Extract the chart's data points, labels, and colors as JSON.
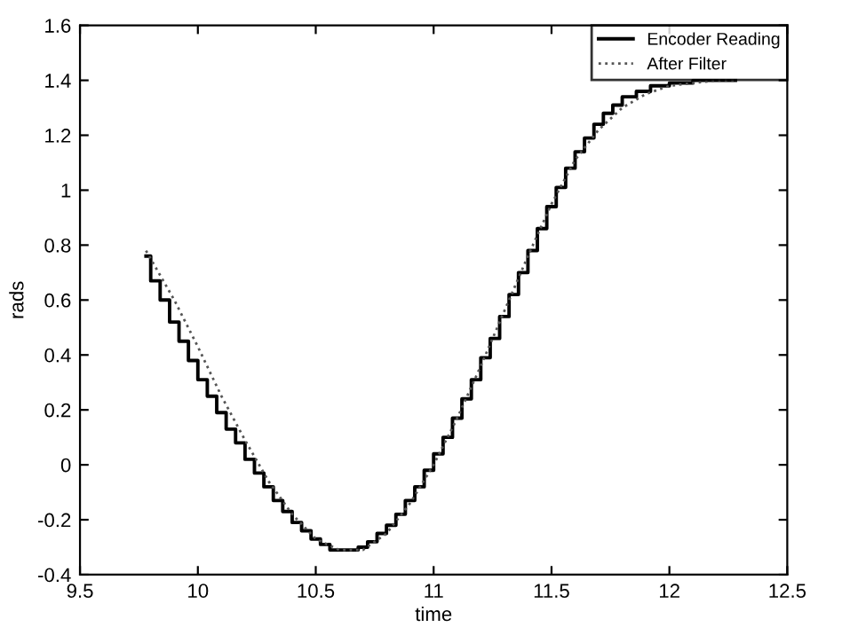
{
  "chart_data": {
    "type": "line",
    "xlabel": "time",
    "ylabel": "rads",
    "xlim": [
      9.5,
      12.5
    ],
    "ylim": [
      -0.4,
      1.6
    ],
    "xticks": [
      9.5,
      10,
      10.5,
      11,
      11.5,
      12,
      12.5
    ],
    "yticks": [
      -0.4,
      -0.2,
      0,
      0.2,
      0.4,
      0.6,
      0.8,
      1,
      1.2,
      1.4,
      1.6
    ],
    "legend": "top right",
    "grid": false,
    "series": [
      {
        "name": "Encoder Reading",
        "type": "step",
        "color": "#000000",
        "line_style": "solid",
        "x": [
          9.78,
          9.8,
          9.84,
          9.88,
          9.92,
          9.96,
          10.0,
          10.04,
          10.08,
          10.12,
          10.16,
          10.2,
          10.24,
          10.28,
          10.32,
          10.36,
          10.4,
          10.44,
          10.48,
          10.52,
          10.56,
          10.68,
          10.72,
          10.76,
          10.8,
          10.84,
          10.88,
          10.92,
          10.96,
          11.0,
          11.04,
          11.08,
          11.12,
          11.16,
          11.2,
          11.24,
          11.28,
          11.32,
          11.36,
          11.4,
          11.44,
          11.48,
          11.52,
          11.56,
          11.6,
          11.64,
          11.68,
          11.72,
          11.76,
          11.8,
          11.86,
          11.92,
          12.0,
          12.1,
          12.28
        ],
        "values": [
          0.76,
          0.67,
          0.6,
          0.52,
          0.45,
          0.38,
          0.31,
          0.25,
          0.19,
          0.13,
          0.08,
          0.02,
          -0.03,
          -0.08,
          -0.13,
          -0.17,
          -0.21,
          -0.24,
          -0.27,
          -0.29,
          -0.31,
          -0.3,
          -0.28,
          -0.25,
          -0.22,
          -0.18,
          -0.13,
          -0.08,
          -0.02,
          0.04,
          0.1,
          0.17,
          0.24,
          0.31,
          0.39,
          0.46,
          0.54,
          0.62,
          0.7,
          0.78,
          0.86,
          0.94,
          1.01,
          1.08,
          1.14,
          1.19,
          1.24,
          1.28,
          1.31,
          1.34,
          1.36,
          1.38,
          1.39,
          1.4,
          1.4
        ]
      },
      {
        "name": "After Filter",
        "color": "#555555",
        "line_style": "dotted",
        "x": [
          9.78,
          9.9,
          10.0,
          10.1,
          10.2,
          10.3,
          10.4,
          10.5,
          10.6,
          10.7,
          10.8,
          10.9,
          11.0,
          11.1,
          11.2,
          11.3,
          11.4,
          11.5,
          11.6,
          11.7,
          11.8,
          11.9,
          12.0,
          12.1,
          12.2,
          12.28
        ],
        "values": [
          0.78,
          0.6,
          0.43,
          0.25,
          0.09,
          -0.06,
          -0.18,
          -0.27,
          -0.31,
          -0.31,
          -0.25,
          -0.14,
          0.0,
          0.17,
          0.36,
          0.56,
          0.76,
          0.95,
          1.11,
          1.22,
          1.3,
          1.35,
          1.38,
          1.39,
          1.4,
          1.4
        ]
      }
    ]
  }
}
